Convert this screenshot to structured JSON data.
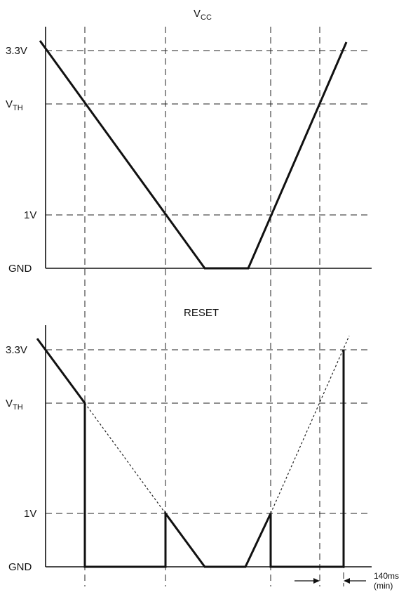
{
  "vcc_panel": {
    "title_main": "V",
    "title_sub": "CC",
    "levels": {
      "v33": "3.3V",
      "vth_main": "V",
      "vth_sub": "TH",
      "v1": "1V",
      "gnd": "GND"
    }
  },
  "reset_panel": {
    "title": "RESET",
    "levels": {
      "v33": "3.3V",
      "vth_main": "V",
      "vth_sub": "TH",
      "v1": "1V",
      "gnd": "GND"
    }
  },
  "annotation": {
    "line1": "140ms",
    "line2": "(min)"
  }
}
